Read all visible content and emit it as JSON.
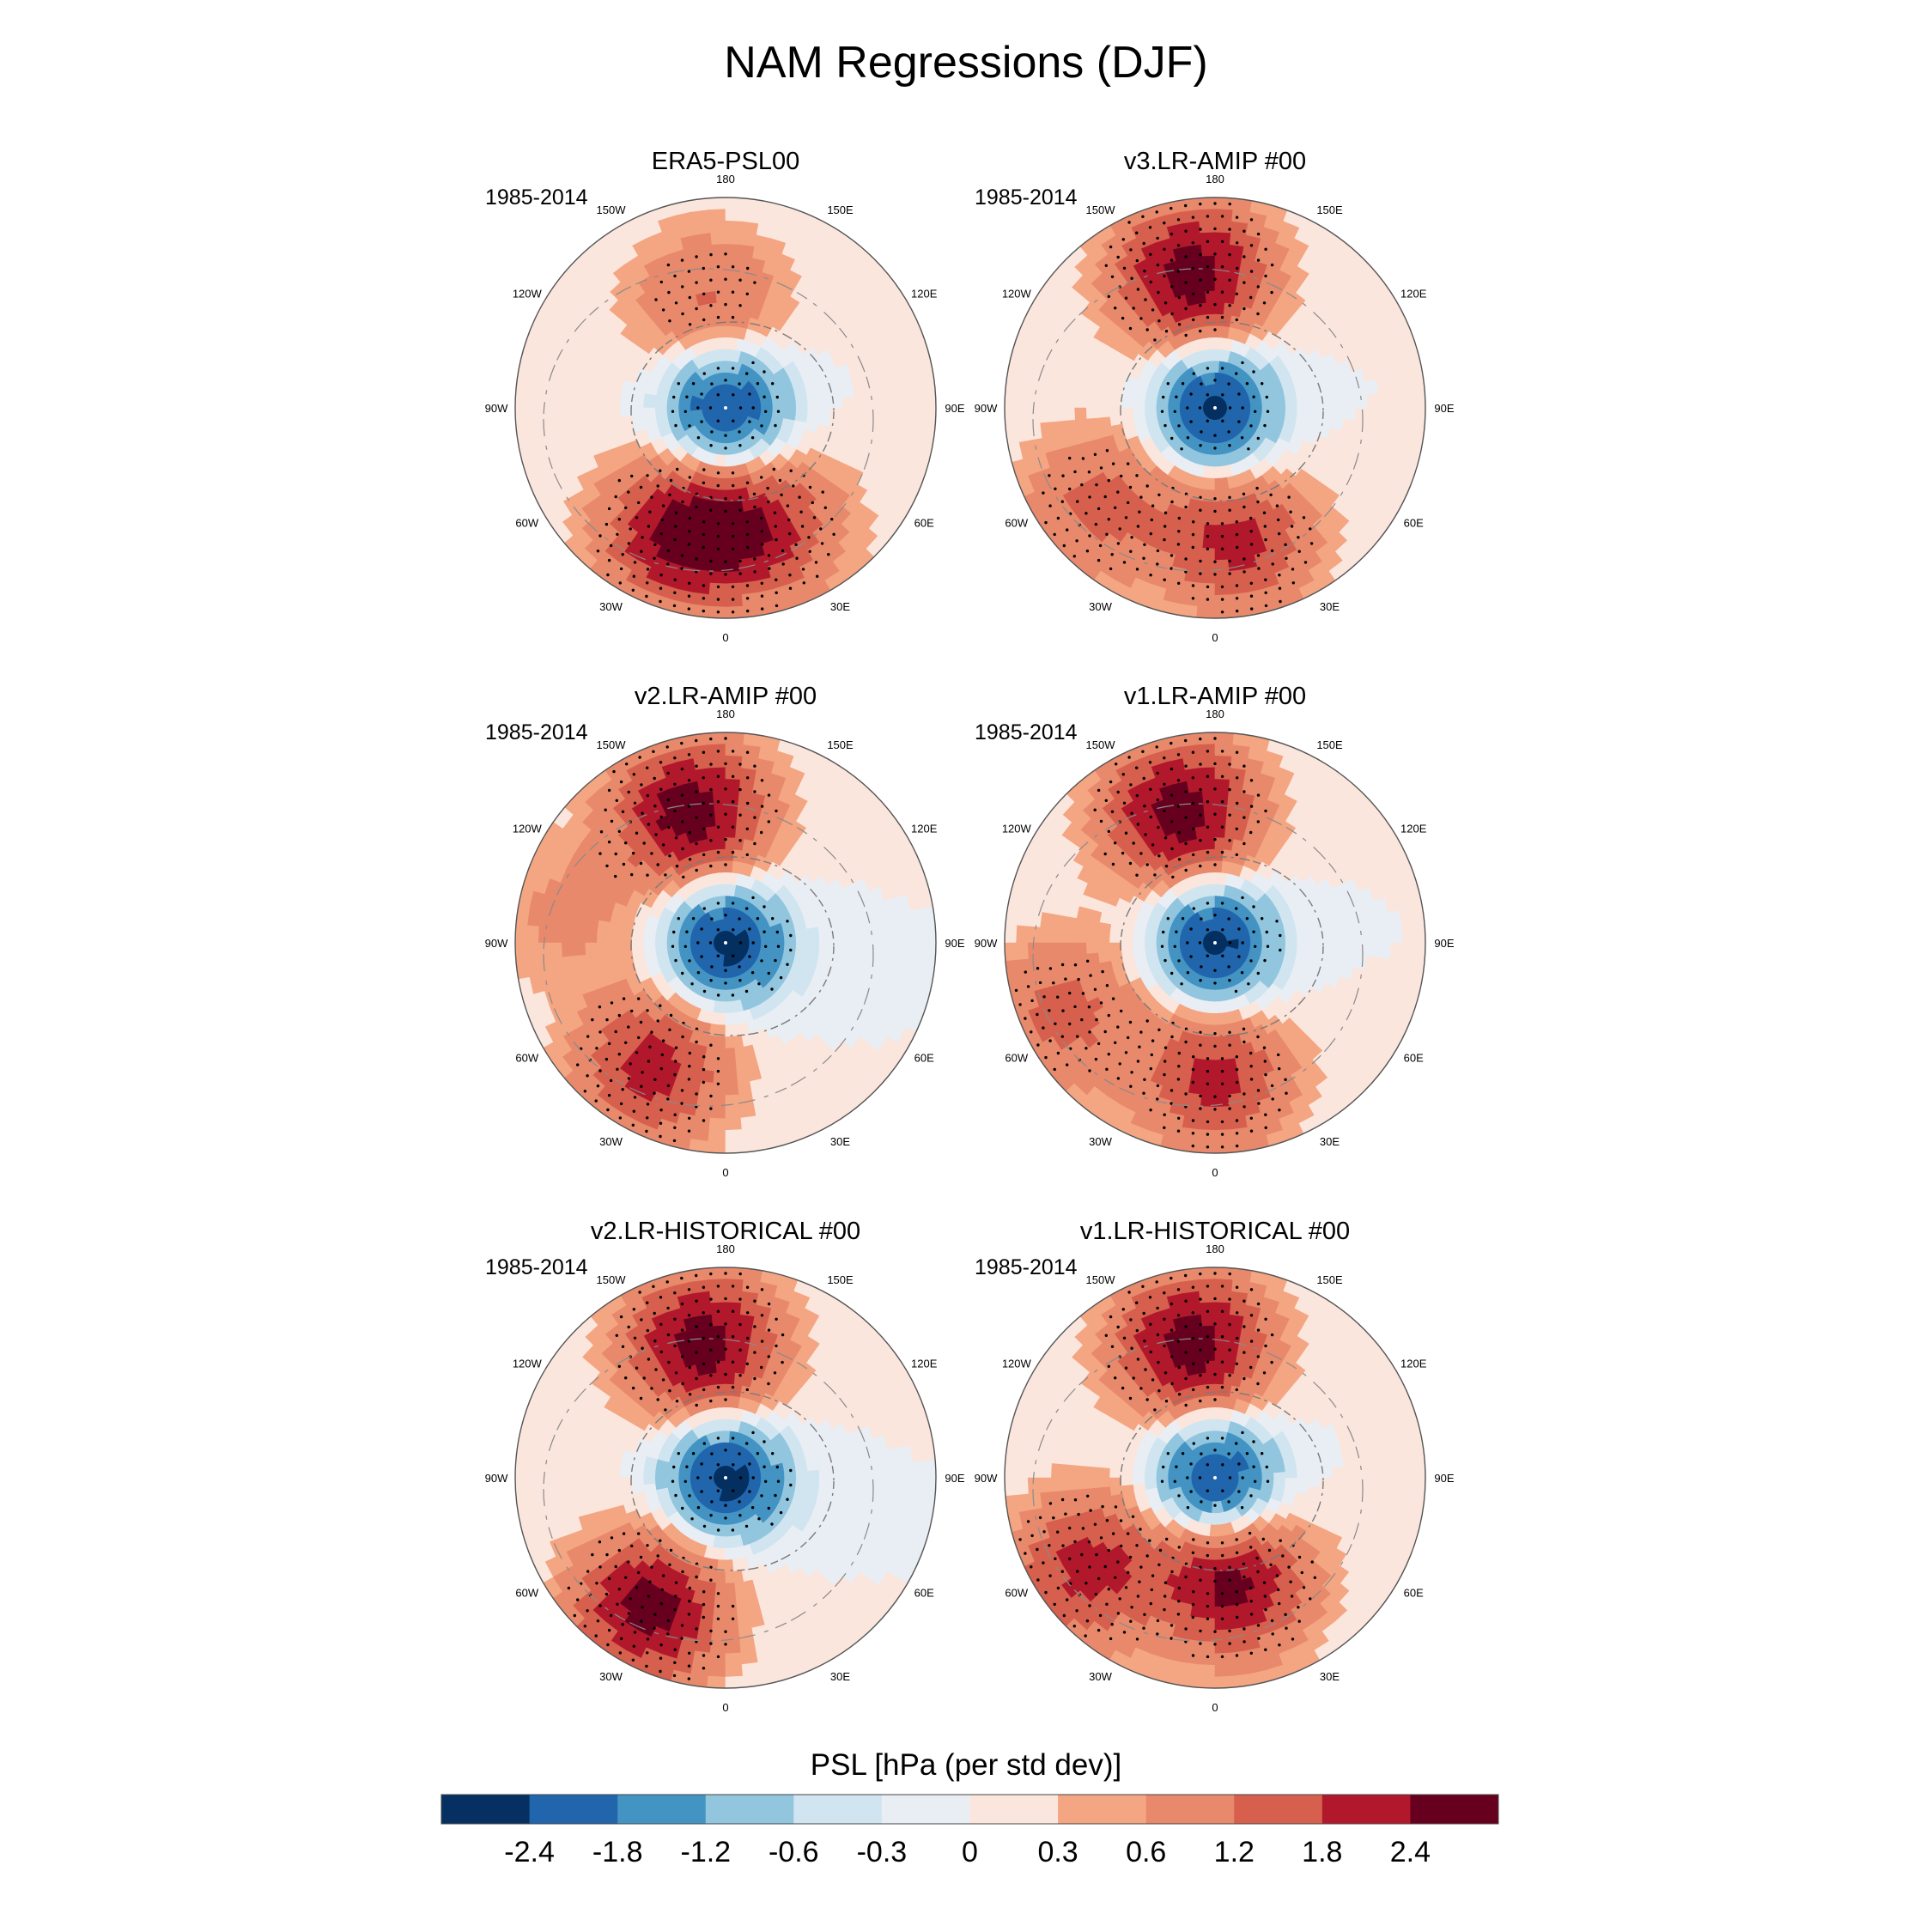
{
  "title": "NAM Regressions (DJF)",
  "longitude_labels": [
    "180",
    "150E",
    "120E",
    "90E",
    "60E",
    "30E",
    "0",
    "30W",
    "60W",
    "90W",
    "120W",
    "150W"
  ],
  "panels": [
    {
      "title": "ERA5-PSL00",
      "period": "1985-2014"
    },
    {
      "title": "v3.LR-AMIP  #00",
      "period": "1985-2014"
    },
    {
      "title": "v2.LR-AMIP  #00",
      "period": "1985-2014"
    },
    {
      "title": "v1.LR-AMIP  #00",
      "period": "1985-2014"
    },
    {
      "title": "v2.LR-HISTORICAL  #00",
      "period": "1985-2014"
    },
    {
      "title": "v1.LR-HISTORICAL  #00",
      "period": "1985-2014"
    }
  ],
  "colorbar": {
    "title": "PSL [hPa (per std dev)]",
    "levels": [
      "-2.4",
      "-1.8",
      "-1.2",
      "-0.6",
      "-0.3",
      "0",
      "0.3",
      "0.6",
      "1.2",
      "1.8",
      "2.4"
    ],
    "colors": [
      "#053061",
      "#2166ac",
      "#4393c3",
      "#92c5de",
      "#d1e5f0",
      "#e8eef4",
      "#fbe6dd",
      "#f4a582",
      "#e8896c",
      "#d6604d",
      "#b2182b",
      "#67001f"
    ]
  },
  "chart_data": {
    "type": "polar-contour-map",
    "title": "NAM Regressions (DJF)",
    "variable": "PSL",
    "units": "hPa (per std dev)",
    "season": "DJF",
    "period": "1985-2014",
    "contour_levels": [
      -2.4,
      -1.8,
      -1.2,
      -0.6,
      -0.3,
      0,
      0.3,
      0.6,
      1.2,
      1.8,
      2.4
    ],
    "panels": [
      {
        "name": "ERA5-PSL00",
        "polar_low": -2.8,
        "highs": [
          {
            "lon": -20,
            "lat": 45,
            "value": 2.6
          },
          {
            "lon": 20,
            "lat": 48,
            "value": 1.8
          },
          {
            "lon": -170,
            "lat": 55,
            "value": 1.3
          }
        ]
      },
      {
        "name": "v3.LR-AMIP  #00",
        "polar_low": -2.8,
        "highs": [
          {
            "lon": -170,
            "lat": 45,
            "value": 2.8
          },
          {
            "lon": 10,
            "lat": 45,
            "value": 2.0
          },
          {
            "lon": -50,
            "lat": 40,
            "value": 1.4
          }
        ]
      },
      {
        "name": "v2.LR-AMIP  #00",
        "polar_low": -2.8,
        "highs": [
          {
            "lon": -165,
            "lat": 45,
            "value": 2.8
          },
          {
            "lon": -30,
            "lat": 42,
            "value": 2.1
          },
          {
            "lon": -100,
            "lat": 35,
            "value": 0.7
          }
        ]
      },
      {
        "name": "v1.LR-AMIP  #00",
        "polar_low": -2.8,
        "highs": [
          {
            "lon": -165,
            "lat": 45,
            "value": 2.8
          },
          {
            "lon": 0,
            "lat": 45,
            "value": 2.0
          },
          {
            "lon": -65,
            "lat": 35,
            "value": 1.4
          }
        ]
      },
      {
        "name": "v2.LR-HISTORICAL  #00",
        "polar_low": -2.8,
        "highs": [
          {
            "lon": -170,
            "lat": 45,
            "value": 2.8
          },
          {
            "lon": -30,
            "lat": 40,
            "value": 2.7
          }
        ]
      },
      {
        "name": "v1.LR-HISTORICAL  #00",
        "polar_low": -2.8,
        "highs": [
          {
            "lon": -170,
            "lat": 45,
            "value": 2.8
          },
          {
            "lon": 10,
            "lat": 55,
            "value": 2.6
          },
          {
            "lon": -55,
            "lat": 38,
            "value": 2.0
          }
        ]
      }
    ]
  }
}
